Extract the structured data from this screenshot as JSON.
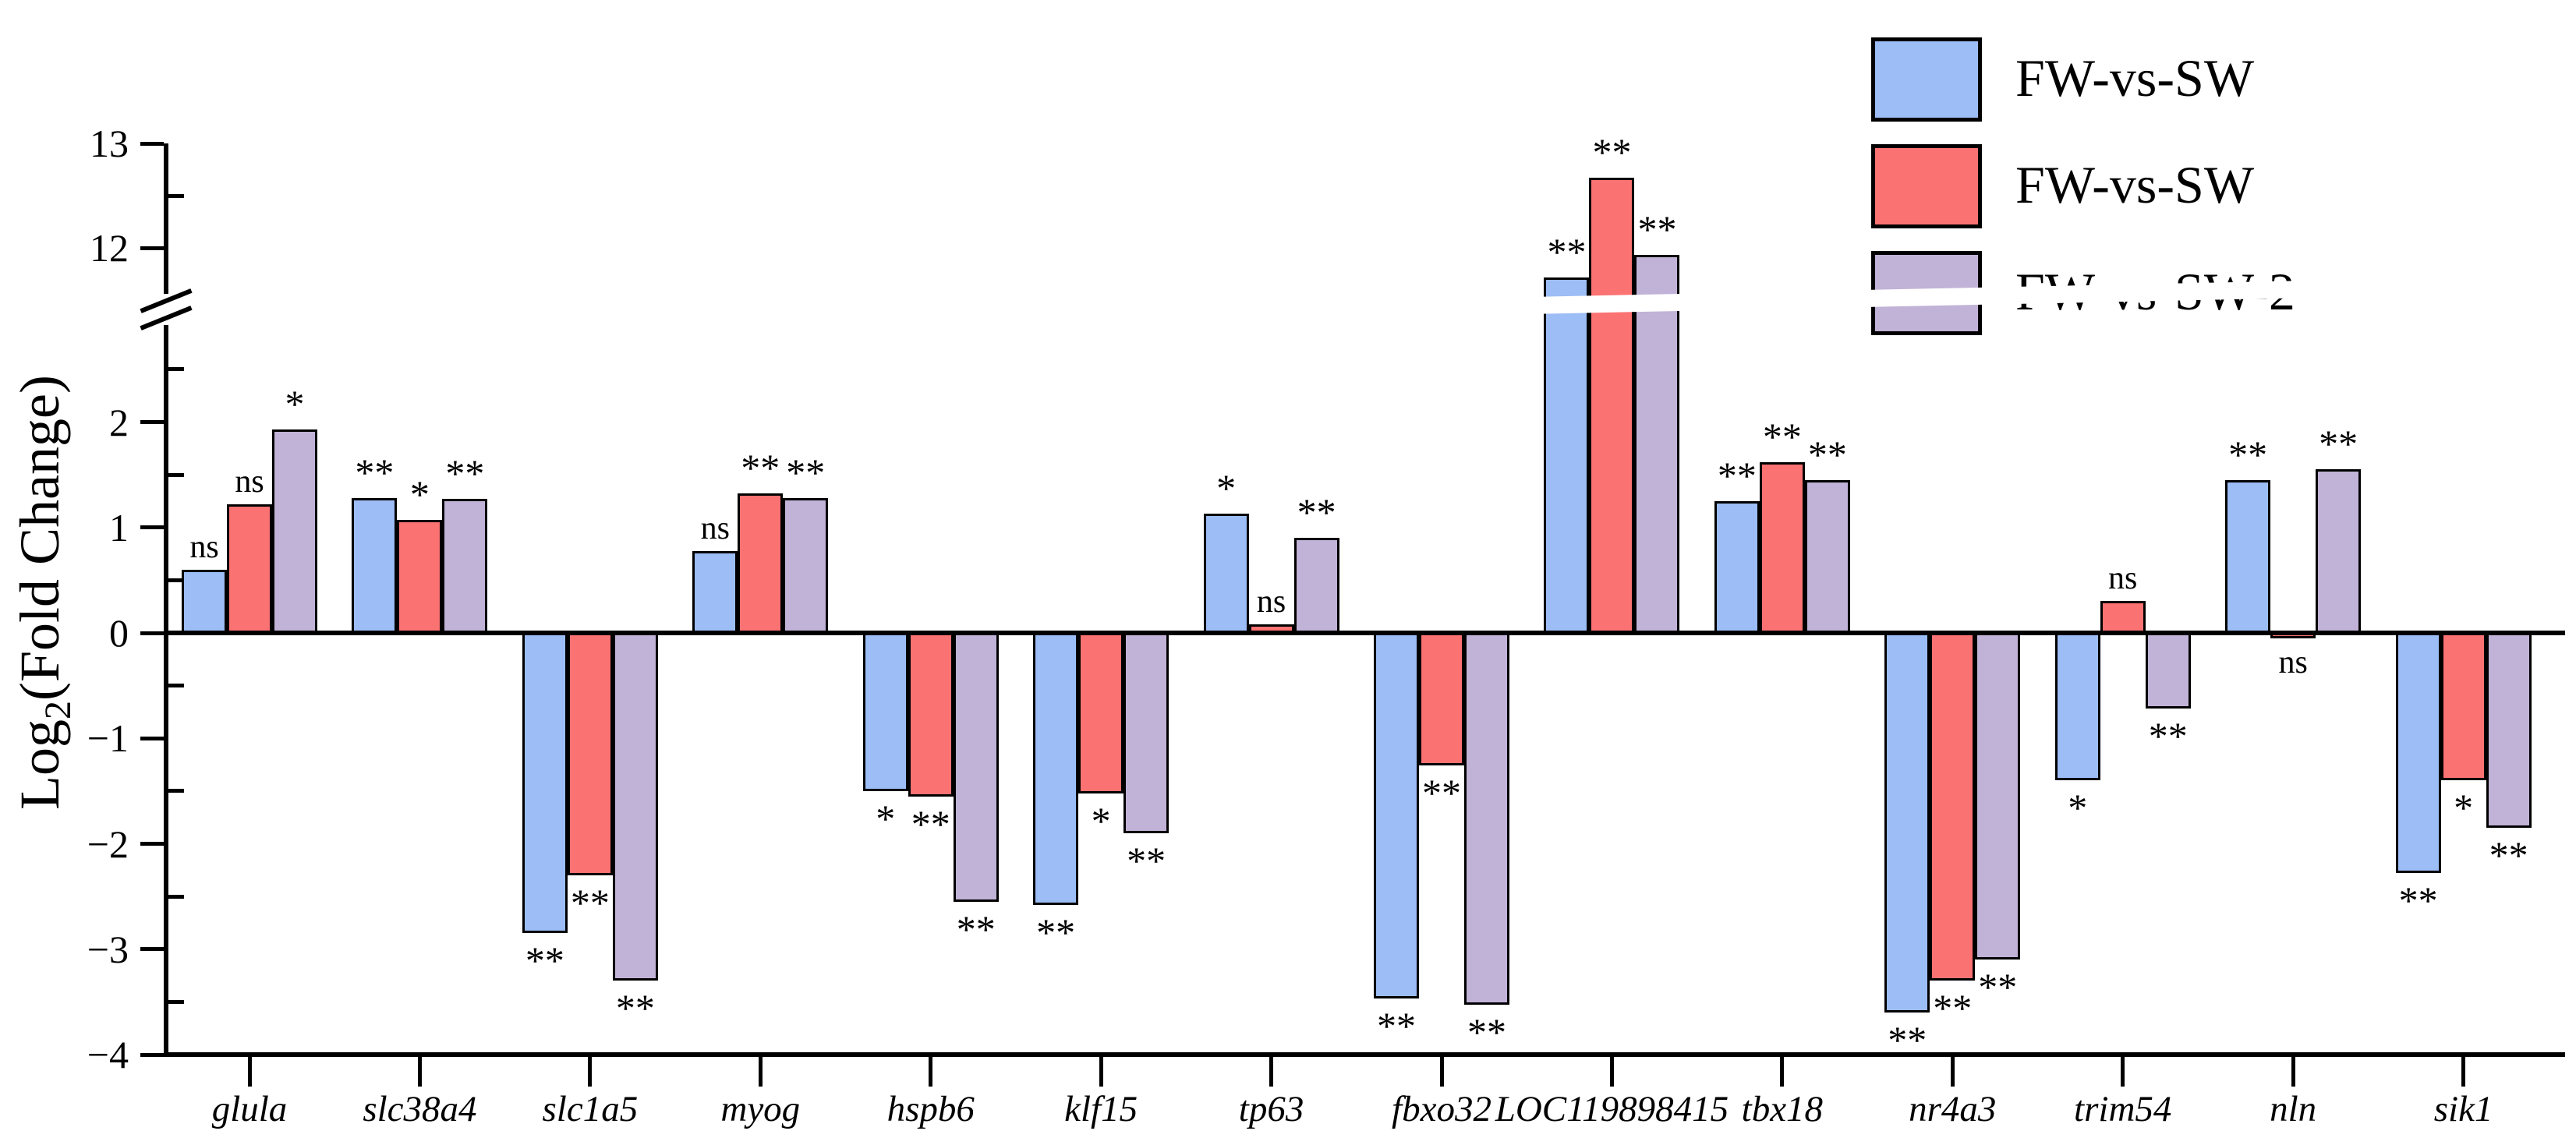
{
  "chart_data": {
    "type": "bar",
    "title": "",
    "xlabel": "",
    "ylabel_pre": "Log",
    "ylabel_sub": "2",
    "ylabel_post": "(Fold Change)",
    "categories": [
      "glula",
      "slc38a4",
      "slc1a5",
      "myog",
      "hspb6",
      "klf15",
      "tp63",
      "fbxo32",
      "LOC119898415",
      "tbx18",
      "nr4a3",
      "trim54",
      "nln",
      "sik1"
    ],
    "series": [
      {
        "name": "FW-vs-SW",
        "color": "#9CBDF5",
        "values": [
          0.6,
          1.28,
          -2.85,
          0.78,
          -1.5,
          -2.58,
          1.13,
          -3.47,
          11.72,
          1.25,
          -3.6,
          -1.4,
          1.45,
          -2.28
        ],
        "sig": [
          "ns",
          "**",
          "**",
          "ns",
          "*",
          "**",
          "*",
          "**",
          "**",
          "**",
          "**",
          "*",
          "**",
          "**"
        ]
      },
      {
        "name": "FW-vs-SW",
        "color": "#FB7272",
        "values": [
          1.22,
          1.07,
          -2.3,
          1.32,
          -1.55,
          -1.52,
          0.08,
          -1.26,
          12.67,
          1.62,
          -3.3,
          0.3,
          -0.05,
          -1.4
        ],
        "sig": [
          "ns",
          "*",
          "**",
          "**",
          "**",
          "*",
          "ns",
          "**",
          "**",
          "**",
          "**",
          "ns",
          "ns",
          "*"
        ]
      },
      {
        "name": "FW-vs-SW-2",
        "color": "#C1B2D7",
        "values": [
          1.93,
          1.27,
          -3.3,
          1.28,
          -2.55,
          -1.9,
          0.9,
          -3.53,
          11.93,
          1.45,
          -3.1,
          -0.72,
          1.55,
          -1.85
        ],
        "sig": [
          "*",
          "**",
          "**",
          "**",
          "**",
          "**",
          "**",
          "**",
          "**",
          "**",
          "**",
          "**",
          "**",
          "**"
        ]
      }
    ],
    "y_axis": {
      "major_ticks": [
        {
          "label": "13",
          "value": 13
        },
        {
          "label": "12",
          "value": 12
        },
        {
          "label": "2",
          "value": 2
        },
        {
          "label": "1",
          "value": 1
        },
        {
          "label": "0",
          "value": 0
        },
        {
          "label": "−1",
          "value": -1
        },
        {
          "label": "−2",
          "value": -2
        },
        {
          "label": "−3",
          "value": -3
        },
        {
          "label": "−4",
          "value": -4
        }
      ],
      "minor_ticks": [
        12.5,
        2.5,
        1.5,
        0.5,
        -0.5,
        -1.5,
        -2.5,
        -3.5
      ],
      "lower_range": [
        -4,
        3.0
      ],
      "upper_range": [
        11.4,
        13
      ],
      "axis_break": true
    },
    "grid": false,
    "legend_position": "top-right",
    "significance_note_values": [
      "ns",
      "*",
      "**"
    ]
  },
  "colors": {
    "axis": "#000000",
    "background": "#ffffff"
  }
}
